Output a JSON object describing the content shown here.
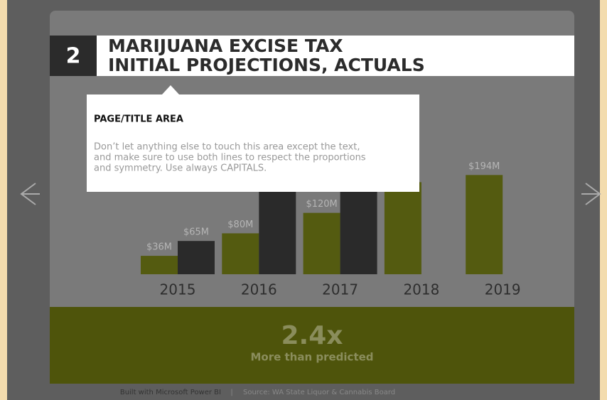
{
  "header": {
    "number": "2",
    "title_line1": "MARIJUANA EXCISE TAX",
    "title_line2": "INITIAL PROJECTIONS, ACTUALS"
  },
  "tooltip": {
    "title": "PAGE/TITLE AREA",
    "text_lines": [
      "Don’t let anything else to touch this area except the text,",
      "and make sure to use both lines to respect the proportions",
      "and symmetry. Use always CAPITALS."
    ]
  },
  "chart_data": {
    "type": "bar",
    "categories": [
      "2015",
      "2016",
      "2017",
      "2018",
      "2019"
    ],
    "series": [
      {
        "color": "#545b10",
        "values": [
          36,
          80,
          120,
          180,
          194
        ],
        "value_labels": [
          "$36M",
          "$80M",
          "$120M",
          null,
          "$194M"
        ]
      },
      {
        "color": "#2a2a2a",
        "values": [
          65,
          180,
          256,
          null,
          null
        ],
        "value_labels": [
          "$65M",
          null,
          null,
          null,
          null
        ]
      }
    ]
  },
  "callout": {
    "value": "2.4x",
    "label": "More than predicted"
  },
  "footer": {
    "built": "Built with Microsoft Power BI",
    "separator": "|",
    "source": "Source: WA State Liquor & Cannabis Board"
  }
}
